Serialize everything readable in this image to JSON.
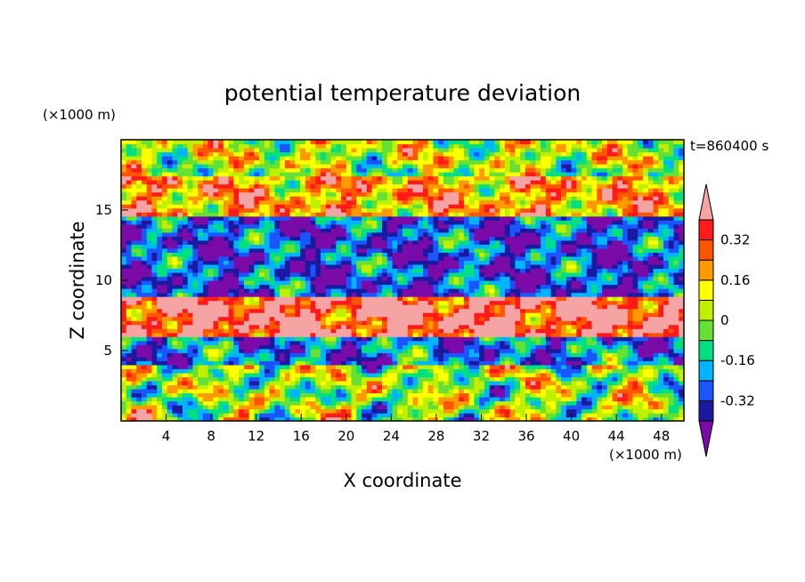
{
  "chart_data": {
    "type": "heatmap",
    "title": "potential temperature deviation",
    "xlabel": "X coordinate",
    "ylabel": "Z coordinate",
    "x_unit": "(×1000 m)",
    "y_unit": "(×1000 m)",
    "time_label": "t=860400 s",
    "xlim": [
      0,
      50
    ],
    "ylim": [
      0,
      20
    ],
    "x_ticks": [
      4,
      8,
      12,
      16,
      20,
      24,
      28,
      32,
      36,
      40,
      44,
      48
    ],
    "y_ticks": [
      5,
      10,
      15
    ],
    "grid": false,
    "legend_position": "right",
    "colorbar": {
      "levels": [
        -0.4,
        -0.32,
        -0.24,
        -0.16,
        -0.08,
        0,
        0.08,
        0.16,
        0.24,
        0.32,
        0.4
      ],
      "colors": [
        "#7b0ba8",
        "#1a1aa0",
        "#1a55ff",
        "#00b4ff",
        "#00e080",
        "#66e033",
        "#c0f000",
        "#ffff00",
        "#ff9900",
        "#ff5500",
        "#ff1a1a",
        "#f5a3a3"
      ],
      "tick_labels": [
        "0.32",
        "0.16",
        "0",
        "-0.16",
        "-0.32"
      ],
      "tick_values": [
        0.32,
        0.16,
        0,
        -0.16,
        -0.32
      ],
      "extend": "both"
    },
    "field_bands": [
      {
        "z_range": [
          18,
          20
        ],
        "typical_value": 0.05
      },
      {
        "z_range": [
          14.5,
          17.5
        ],
        "typical_value": 0.2
      },
      {
        "z_range": [
          9,
          14.5
        ],
        "typical_value": -0.3
      },
      {
        "z_range": [
          6,
          9
        ],
        "typical_value": 0.4
      },
      {
        "z_range": [
          4,
          6
        ],
        "typical_value": -0.25
      },
      {
        "z_range": [
          0,
          4
        ],
        "typical_value": 0.0
      }
    ]
  }
}
